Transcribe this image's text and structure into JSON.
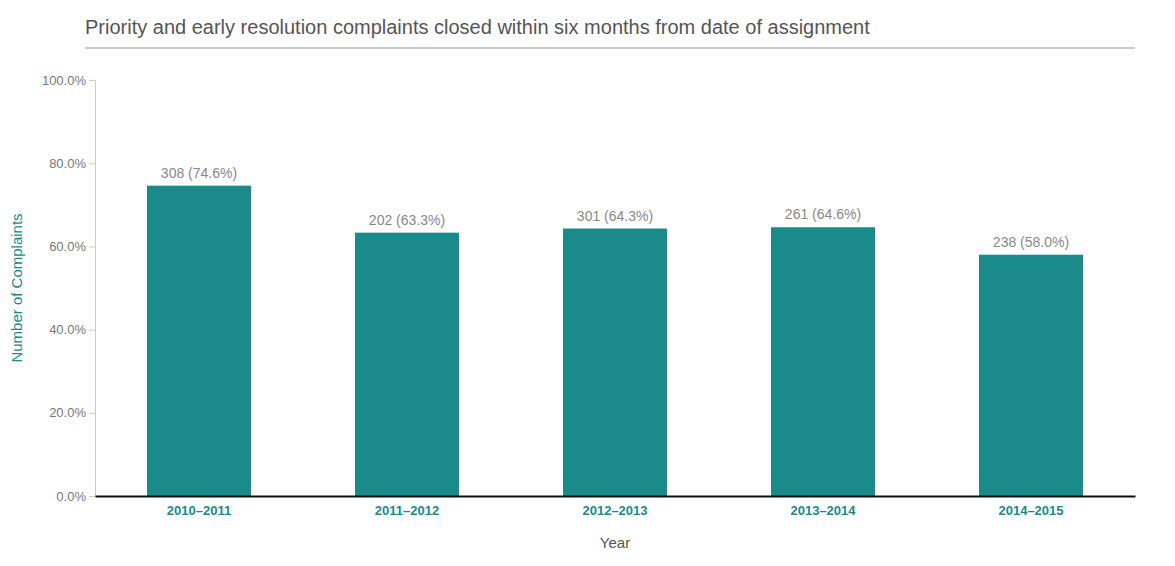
{
  "chart_data": {
    "type": "bar",
    "title": "Priority and early resolution complaints closed within six months from date of assignment",
    "categories": [
      "2010–2011",
      "2011–2012",
      "2012–2013",
      "2013–2014",
      "2014–2015"
    ],
    "values": [
      74.6,
      63.3,
      64.3,
      64.6,
      58.0
    ],
    "value_labels": [
      "308 (74.6%)",
      "202 (63.3%)",
      "301 (64.3%)",
      "261 (64.6%)",
      "238 (58.0%)"
    ],
    "color": "#1a8a8a",
    "xlabel": "Year",
    "ylabel": "Number of Complaints",
    "ylim": [
      0,
      100
    ],
    "yticks": [
      {
        "value": 0,
        "label": "0.0%"
      },
      {
        "value": 20,
        "label": "20.0%"
      },
      {
        "value": 40,
        "label": "40.0%"
      },
      {
        "value": 60,
        "label": "60.0%"
      },
      {
        "value": 80,
        "label": "80.0%"
      },
      {
        "value": 100,
        "label": "100.0%"
      }
    ],
    "grid": false
  }
}
